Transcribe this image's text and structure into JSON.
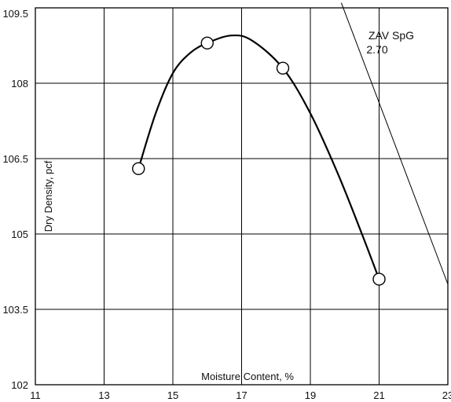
{
  "chart_data": {
    "type": "scatter",
    "title": "",
    "xlabel": "Moisture Content, %",
    "ylabel": "Dry Density, pcf",
    "xlim": [
      11,
      23
    ],
    "ylim": [
      102,
      109.5
    ],
    "x_ticks": [
      "11",
      "13",
      "15",
      "17",
      "19",
      "21",
      "23"
    ],
    "y_ticks": [
      "102",
      "103.5",
      "105",
      "106.5",
      "108",
      "109.5"
    ],
    "grid": true,
    "series": [
      {
        "values_x": [
          14.0,
          16.0,
          18.2,
          21.0
        ],
        "values_y": [
          106.3,
          108.8,
          108.3,
          104.1
        ]
      }
    ],
    "curve": {
      "x": [
        14.0,
        14.5,
        15.0,
        15.5,
        16.0,
        16.7,
        17.3,
        18.2,
        19.0,
        19.8,
        20.5,
        21.0
      ],
      "y": [
        106.3,
        107.4,
        108.2,
        108.6,
        108.8,
        108.95,
        108.85,
        108.3,
        107.4,
        106.2,
        105.0,
        104.1
      ]
    },
    "zav_line": {
      "label_line1": "ZAV SpG",
      "label_line2": "2.70",
      "x": [
        19.9,
        23.0
      ],
      "y": [
        109.6,
        104.0
      ]
    },
    "colors": {
      "line": "#000000",
      "marker_fill": "#ffffff",
      "grid": "#000000"
    }
  }
}
